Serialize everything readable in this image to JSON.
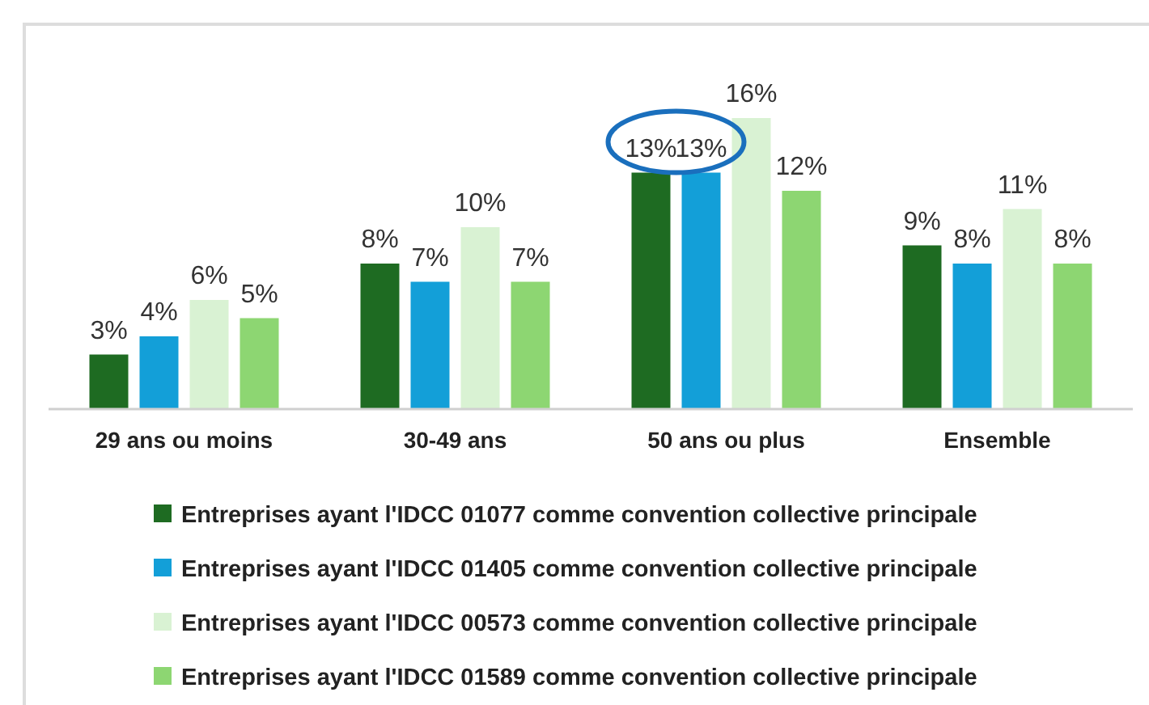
{
  "chart_data": {
    "type": "bar",
    "categories": [
      "29 ans ou moins",
      "30-49 ans",
      "50 ans ou plus",
      "Ensemble"
    ],
    "series": [
      {
        "name": "Entreprises ayant l'IDCC 01077 comme convention collective principale",
        "color": "#1e6b22",
        "values": [
          3,
          8,
          13,
          9
        ],
        "value_labels": [
          "3%",
          "8%",
          "13%",
          "9%"
        ]
      },
      {
        "name": "Entreprises ayant l'IDCC 01405 comme convention collective principale",
        "color": "#139fd8",
        "values": [
          4,
          7,
          13,
          8
        ],
        "value_labels": [
          "4%",
          "7%",
          "13%",
          "8%"
        ]
      },
      {
        "name": "Entreprises ayant l'IDCC 00573 comme convention collective principale",
        "color": "#d9f2d3",
        "values": [
          6,
          10,
          16,
          11
        ],
        "value_labels": [
          "6%",
          "10%",
          "16%",
          "11%"
        ]
      },
      {
        "name": "Entreprises ayant l'IDCC 01589 comme convention collective principale",
        "color": "#8dd672",
        "values": [
          5,
          7,
          12,
          8
        ],
        "value_labels": [
          "5%",
          "7%",
          "12%",
          "8%"
        ]
      }
    ],
    "legend": "bottom"
  }
}
